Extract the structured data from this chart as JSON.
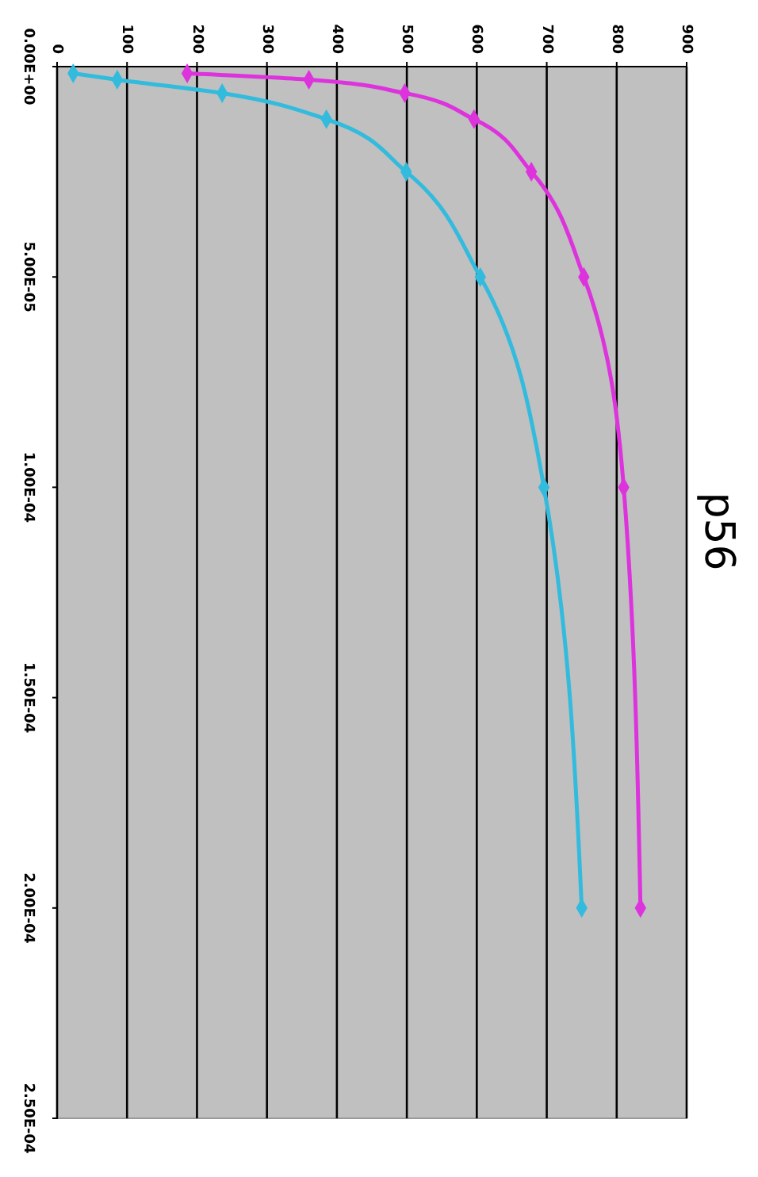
{
  "chart_data": {
    "type": "line",
    "title": "p56",
    "series": [
      {
        "color": "#33bbdd",
        "x": [
          23,
          86,
          236,
          385,
          499,
          605,
          696,
          750
        ],
        "values": [
          1.6e-06,
          3.1e-06,
          6.3e-06,
          1.25e-05,
          2.5e-05,
          5e-05,
          0.0001,
          0.0002
        ]
      },
      {
        "color": "#dd33dd",
        "x": [
          186,
          360,
          497,
          596,
          678,
          753,
          810,
          834
        ],
        "values": [
          1.6e-06,
          3.1e-06,
          6.3e-06,
          1.25e-05,
          2.5e-05,
          5e-05,
          0.0001,
          0.0002
        ]
      }
    ],
    "ylim": [
      0.00025,
      0
    ],
    "yticks": [
      {
        "value": 0,
        "label": "0.00E+00"
      },
      {
        "value": 5e-05,
        "label": "5.00E-05"
      },
      {
        "value": 0.0001,
        "label": "1.00E-04"
      },
      {
        "value": 0.00015,
        "label": "1.50E-04"
      },
      {
        "value": 0.0002,
        "label": "2.00E-04"
      },
      {
        "value": 0.00025,
        "label": "2.50E-04"
      }
    ],
    "xlim": [
      0,
      900
    ],
    "xticks": [
      0,
      100,
      200,
      300,
      400,
      500,
      600,
      700,
      800,
      900
    ],
    "grid": "x",
    "marker": "diamond",
    "line_style": "solid"
  }
}
